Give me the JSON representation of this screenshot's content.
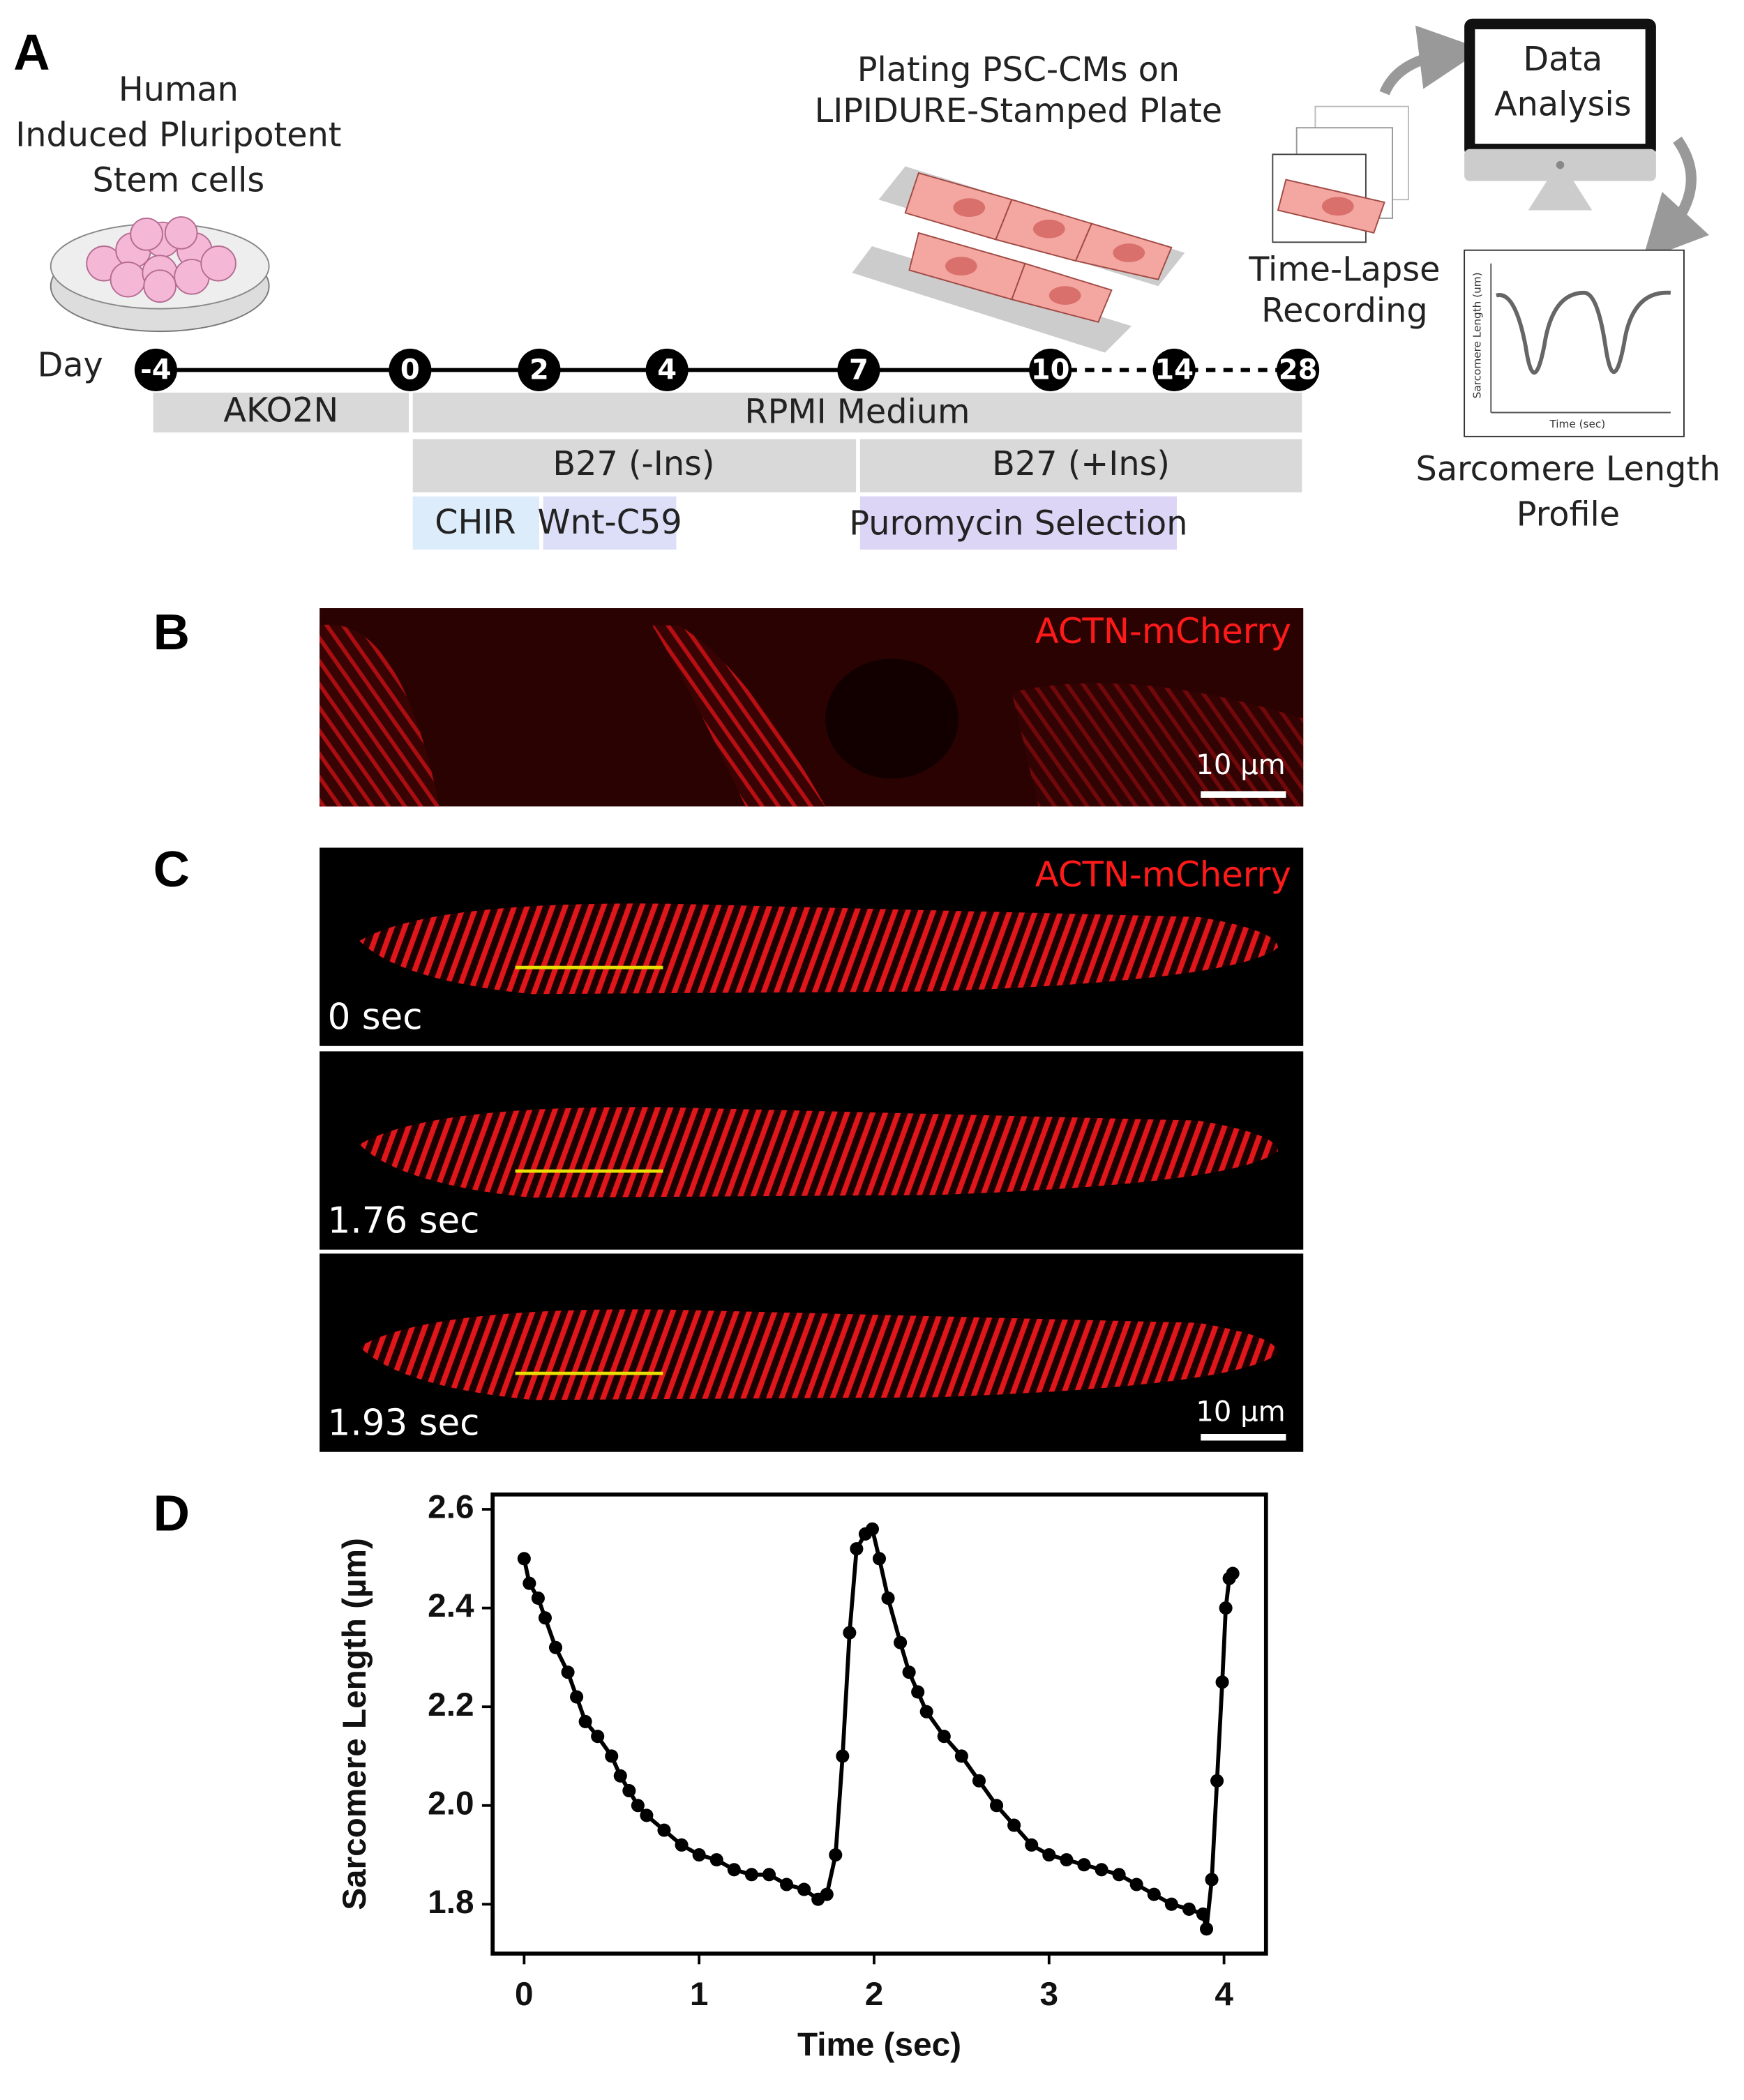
{
  "panel_a": {
    "label": "A",
    "stem_cells": [
      "Human",
      "Induced Pluripotent",
      "Stem cells"
    ],
    "day_label": "Day",
    "days": [
      "-4",
      "0",
      "2",
      "4",
      "7",
      "10",
      "14",
      "28"
    ],
    "plating": [
      "Plating PSC-CMs on",
      "LIPIDURE-Stamped Plate"
    ],
    "time_lapse": [
      "Time-Lapse",
      "Recording"
    ],
    "data_analysis": [
      "Data",
      "Analysis"
    ],
    "profile": [
      "Sarcomere Length",
      "Profile"
    ],
    "profile_axes": {
      "y": "Sarcomere Length (um)",
      "x": "Time (sec)"
    },
    "media": [
      "AKO2N",
      "RPMI Medium",
      "B27 (-Ins)",
      "B27 (+Ins)",
      "CHIR",
      "Wnt-C59",
      "Puromycin Selection"
    ]
  },
  "panel_b": {
    "label": "B",
    "stain": "ACTN-mCherry",
    "scale": "10 µm"
  },
  "panel_c": {
    "label": "C",
    "stain": "ACTN-mCherry",
    "frames": [
      "0 sec",
      "1.76 sec",
      "1.93 sec"
    ],
    "scale": "10 µm"
  },
  "chart_data": {
    "label": "D",
    "type": "line",
    "markers": true,
    "color": "#000000",
    "xlabel": "Time (sec)",
    "ylabel": "Sarcomere Length (µm)",
    "x": [
      0,
      0.03,
      0.08,
      0.12,
      0.18,
      0.25,
      0.3,
      0.35,
      0.42,
      0.5,
      0.55,
      0.6,
      0.65,
      0.7,
      0.8,
      0.9,
      1.0,
      1.1,
      1.2,
      1.3,
      1.4,
      1.5,
      1.6,
      1.68,
      1.73,
      1.78,
      1.82,
      1.86,
      1.9,
      1.95,
      1.99,
      2.03,
      2.08,
      2.15,
      2.2,
      2.25,
      2.3,
      2.4,
      2.5,
      2.6,
      2.7,
      2.8,
      2.9,
      3.0,
      3.1,
      3.2,
      3.3,
      3.4,
      3.5,
      3.6,
      3.7,
      3.8,
      3.88,
      3.9,
      3.93,
      3.96,
      3.99,
      4.01,
      4.03,
      4.05
    ],
    "values": [
      2.5,
      2.45,
      2.42,
      2.38,
      2.32,
      2.27,
      2.22,
      2.17,
      2.14,
      2.1,
      2.06,
      2.03,
      2.0,
      1.98,
      1.95,
      1.92,
      1.9,
      1.89,
      1.87,
      1.86,
      1.86,
      1.84,
      1.83,
      1.81,
      1.82,
      1.9,
      2.1,
      2.35,
      2.52,
      2.55,
      2.56,
      2.5,
      2.42,
      2.33,
      2.27,
      2.23,
      2.19,
      2.14,
      2.1,
      2.05,
      2.0,
      1.96,
      1.92,
      1.9,
      1.89,
      1.88,
      1.87,
      1.86,
      1.84,
      1.82,
      1.8,
      1.79,
      1.78,
      1.75,
      1.85,
      2.05,
      2.25,
      2.4,
      2.46,
      2.47
    ],
    "xlim": [
      -0.18,
      4.24
    ],
    "ylim": [
      1.7,
      2.63
    ],
    "xticks": [
      0,
      1,
      2,
      3,
      4
    ],
    "yticks": [
      1.8,
      {
        "value": 2,
        "label": "2.0"
      },
      2.2,
      2.4,
      2.6
    ]
  }
}
